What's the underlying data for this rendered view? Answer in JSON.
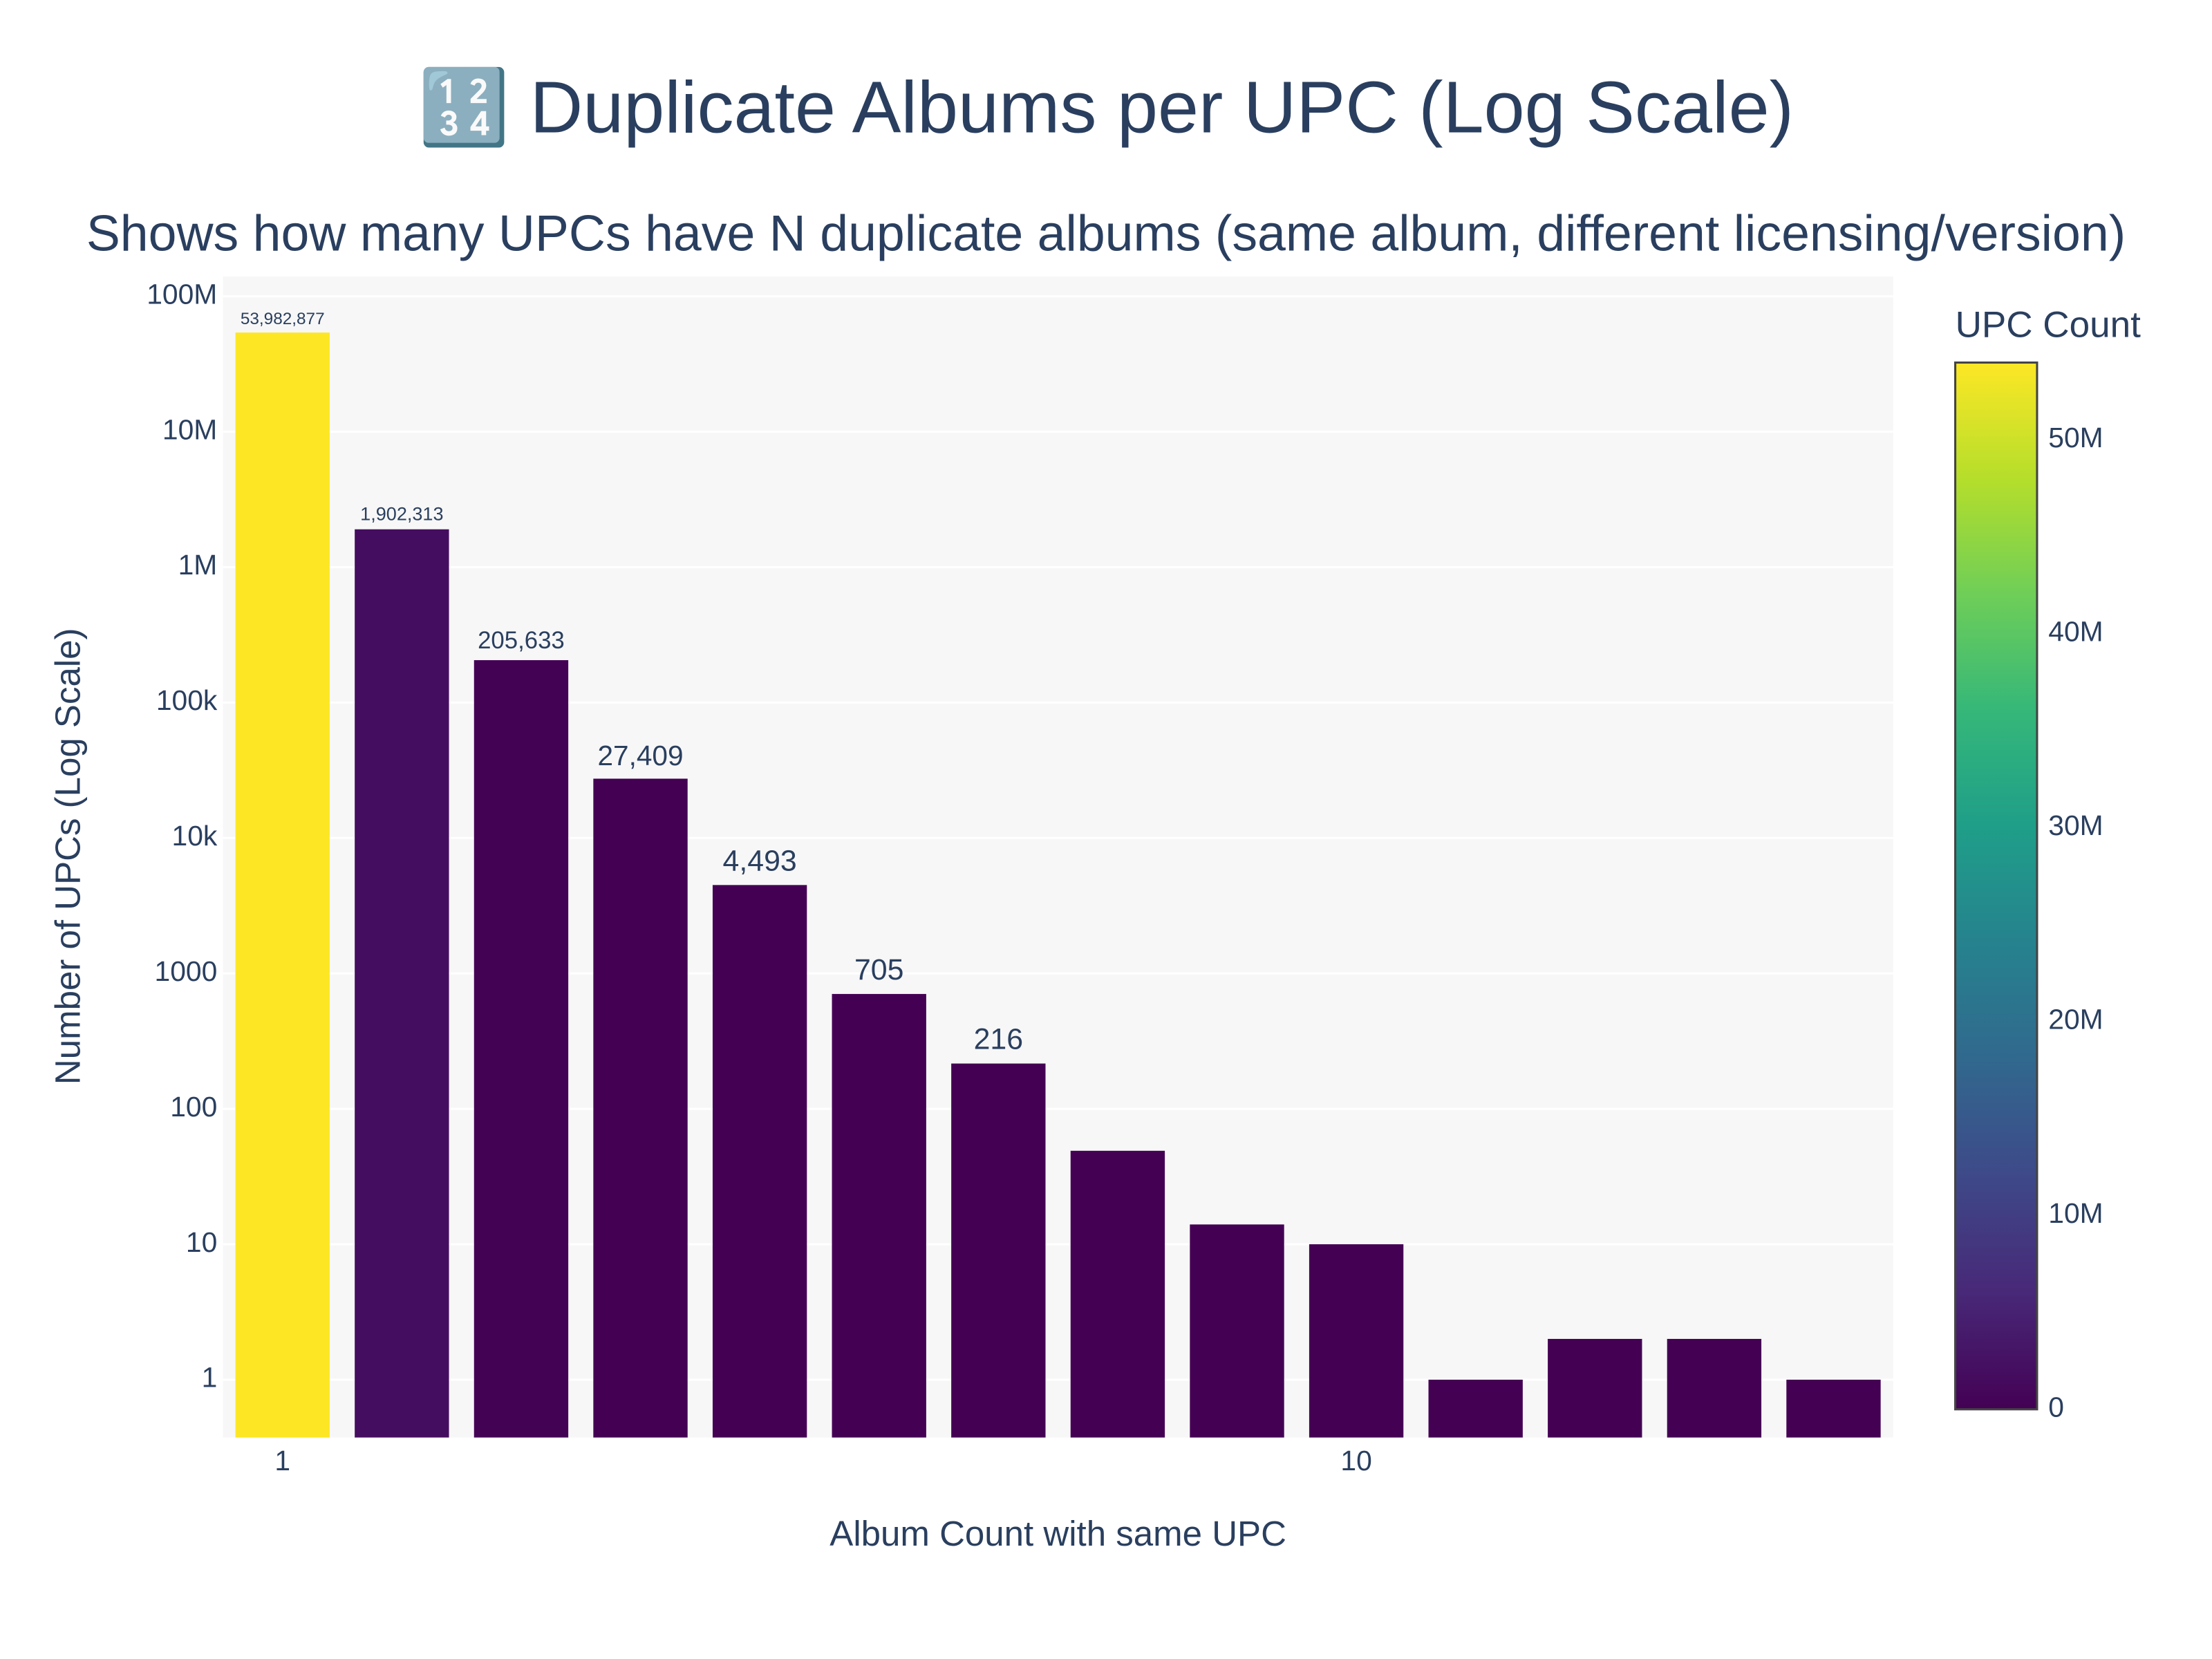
{
  "chart_data": {
    "type": "bar",
    "title": "🔢 Duplicate Albums per UPC (Log Scale)",
    "subtitle": "Shows how many UPCs have N duplicate albums (same album, different licensing/version)",
    "x_label": "Album Count with same UPC",
    "y_label": "Number of UPCs (Log Scale)",
    "x": [
      1,
      2,
      3,
      4,
      5,
      6,
      7,
      8,
      9,
      10,
      11,
      12,
      13,
      14
    ],
    "values": [
      53982877,
      1902313,
      205633,
      27409,
      4493,
      705,
      216,
      49,
      14,
      10,
      1,
      2,
      2,
      1
    ],
    "value_labels": [
      "53,982,877",
      "1,902,313",
      "205,633",
      "27,409",
      "4,493",
      "705",
      "216",
      null,
      null,
      null,
      null,
      null,
      null,
      null
    ],
    "xlim": [
      0.5,
      14.5
    ],
    "xticks": [
      1,
      10
    ],
    "ylim": [
      0.374,
      140000000
    ],
    "log_y": true,
    "yticks": [
      1,
      10,
      100,
      1000,
      {
        "value": 10000,
        "label": "10k"
      },
      {
        "value": 100000,
        "label": "100k"
      },
      {
        "value": 1000000,
        "label": "1M"
      },
      {
        "value": 10000000,
        "label": "10M"
      },
      {
        "value": 100000000,
        "label": "100M"
      }
    ],
    "grid": true,
    "colorbar": {
      "title": "UPC Count",
      "clim": [
        0,
        53982877
      ],
      "ticks": [
        0,
        {
          "value": 10000000,
          "label": "10M"
        },
        {
          "value": 20000000,
          "label": "20M"
        },
        {
          "value": 30000000,
          "label": "30M"
        },
        {
          "value": 40000000,
          "label": "40M"
        },
        {
          "value": 50000000,
          "label": "50M"
        }
      ],
      "colorscale": [
        "#440154",
        "#482878",
        "#3e4989",
        "#31688e",
        "#26828e",
        "#1f9e89",
        "#35b779",
        "#6ece58",
        "#b5de2b",
        "#fde725"
      ]
    }
  }
}
